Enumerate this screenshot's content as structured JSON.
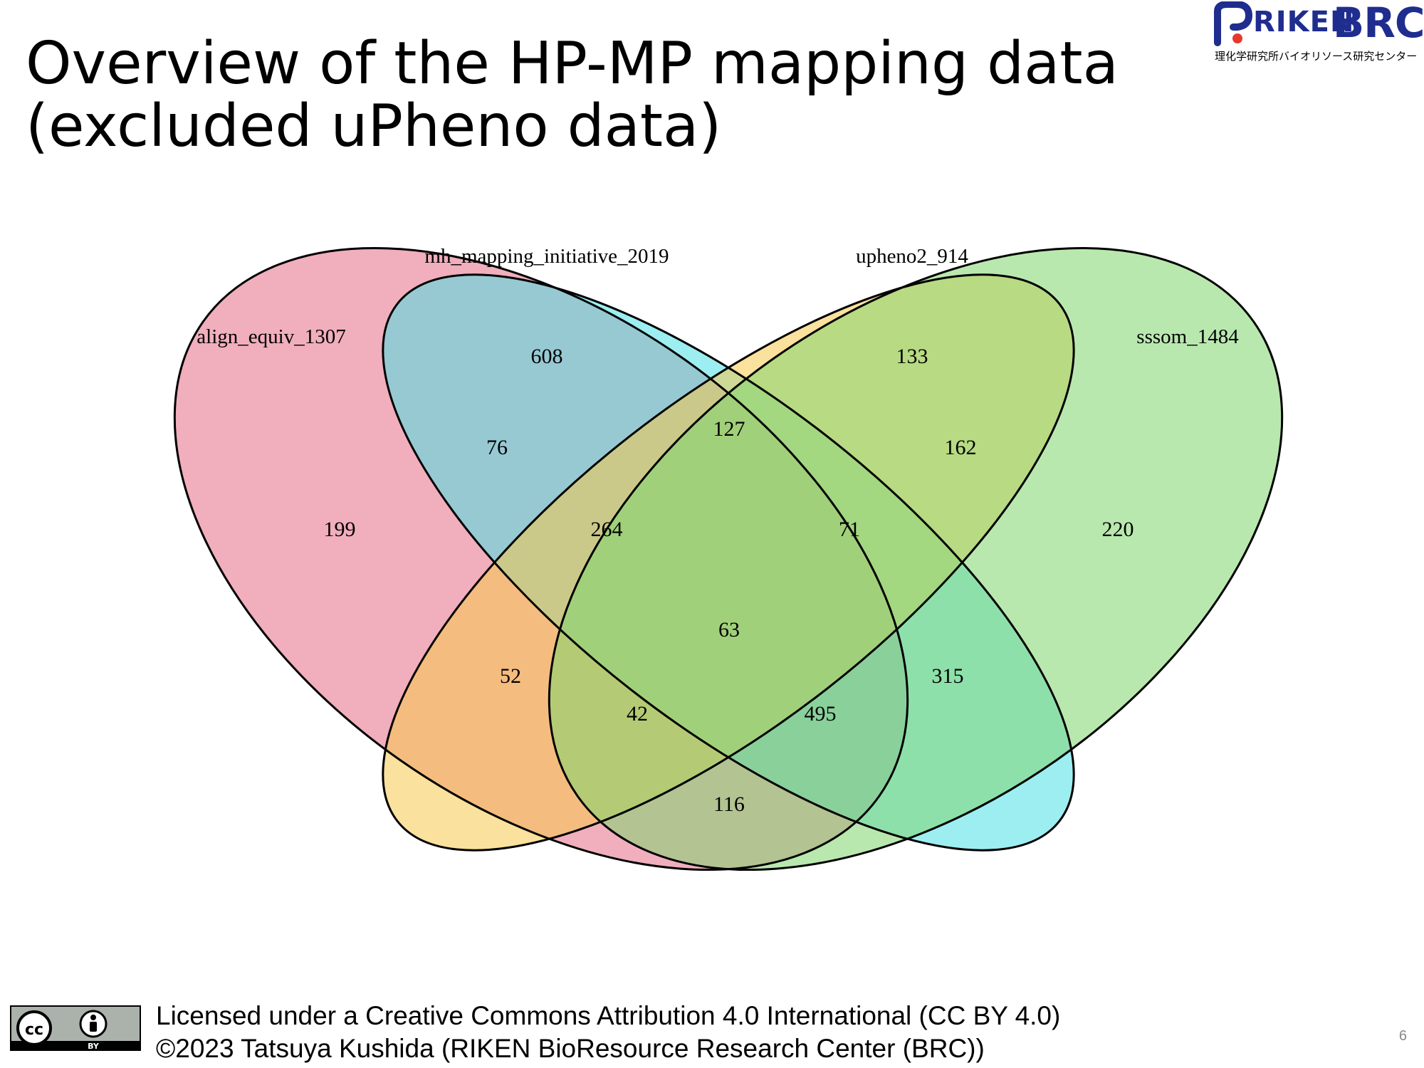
{
  "slide": {
    "title_line1": "Overview of the HP-MP mapping data",
    "title_line2": "(excluded uPheno data)",
    "page_number": "6"
  },
  "logo": {
    "riken": "RIKEN",
    "brc": "BRC",
    "subtitle": "理化学研究所バイオリソース研究センター"
  },
  "venn": {
    "sets": [
      {
        "name": "align_equiv_1307",
        "color": "#e56b86"
      },
      {
        "name": "mh_mapping_initiative_2019",
        "color": "#4de0e6"
      },
      {
        "name": "upheno2_914",
        "color": "#f5c84c"
      },
      {
        "name": "sssom_1484",
        "color": "#7fd66d"
      }
    ],
    "regions": {
      "align_only": "199",
      "mh_only": "608",
      "upheno_only": "133",
      "sssom_only": "220",
      "align_mh": "76",
      "mh_upheno": "127",
      "upheno_sssom": "162",
      "align_mh_upheno": "264",
      "mh_upheno_sssom": "71",
      "all_four": "63",
      "align_upheno": "52",
      "mh_sssom": "315",
      "align_upheno_sssom": "42",
      "align_mh_sssom": "495",
      "align_sssom": "116"
    }
  },
  "footer": {
    "cc_label": "BY",
    "license_line1": "Licensed under a Creative Commons Attribution 4.0 International (CC BY 4.0)",
    "license_line2": "©2023 Tatsuya Kushida (RIKEN BioResource Research Center (BRC))"
  }
}
